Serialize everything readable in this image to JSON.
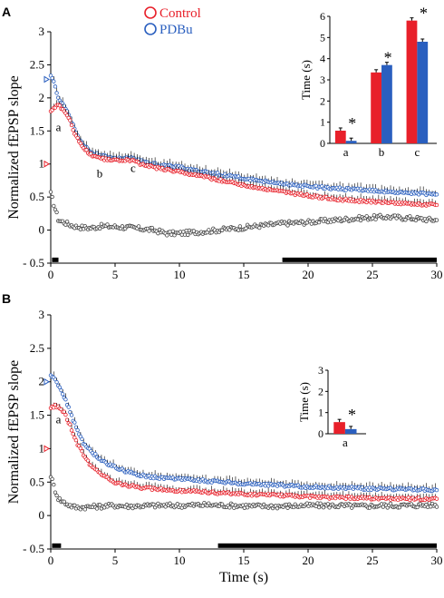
{
  "figure": {
    "colors": {
      "control": "#e8202a",
      "pdbu": "#2a5fbf",
      "difference": "#444444",
      "bar": "#000000"
    }
  },
  "chart_data": [
    {
      "panel": "A",
      "type": "scatter",
      "ylabel": "Normalized fEPSP slope",
      "xlabel": "",
      "xlim": [
        0,
        30
      ],
      "ylim": [
        -0.5,
        3
      ],
      "xticks": [
        "0",
        "5",
        "10",
        "15",
        "20",
        "25",
        "30"
      ],
      "yticks": [
        "- 0.5",
        "0",
        "0.5",
        "1",
        "1.5",
        "2",
        "2.5",
        "3"
      ],
      "legend": [
        "Control",
        "PDBu"
      ],
      "markers": [
        {
          "label": "a",
          "x": 0.6,
          "y": 1.5
        },
        {
          "label": "b",
          "x": 3.8,
          "y": 0.8
        },
        {
          "label": "c",
          "x": 6.4,
          "y": 0.88
        }
      ],
      "arrowheads": [
        {
          "series": "pdbu",
          "y": 2.28
        },
        {
          "series": "control",
          "y": 1.0
        }
      ],
      "series": [
        {
          "name": "PDBu",
          "color_key": "pdbu",
          "x": [
            0,
            0.3,
            0.6,
            1,
            1.5,
            2,
            2.5,
            3,
            3.5,
            4,
            5,
            6,
            7,
            8,
            10,
            12,
            15,
            18,
            20,
            22,
            25,
            28,
            30
          ],
          "values": [
            2.35,
            2.2,
            2.0,
            1.9,
            1.7,
            1.45,
            1.3,
            1.2,
            1.15,
            1.12,
            1.08,
            1.1,
            1.05,
            1.0,
            0.95,
            0.88,
            0.78,
            0.7,
            0.66,
            0.63,
            0.6,
            0.56,
            0.54
          ]
        },
        {
          "name": "Control",
          "color_key": "control",
          "x": [
            0,
            0.3,
            0.6,
            1,
            1.5,
            2,
            2.5,
            3,
            3.5,
            4,
            5,
            6,
            7,
            8,
            10,
            12,
            15,
            18,
            20,
            22,
            25,
            28,
            30
          ],
          "values": [
            1.8,
            1.87,
            1.88,
            1.82,
            1.65,
            1.4,
            1.25,
            1.15,
            1.1,
            1.08,
            1.05,
            1.07,
            1.0,
            0.95,
            0.88,
            0.8,
            0.68,
            0.58,
            0.52,
            0.47,
            0.43,
            0.4,
            0.38
          ]
        },
        {
          "name": "",
          "color_key": "difference",
          "x": [
            0,
            0.3,
            0.6,
            1,
            1.5,
            2,
            3,
            4,
            5,
            6,
            7,
            8,
            9,
            10,
            12,
            14,
            16,
            18,
            20,
            22,
            24,
            26,
            28,
            30
          ],
          "values": [
            0.55,
            0.35,
            0.15,
            0.12,
            0.08,
            0.05,
            0.03,
            0.06,
            0.05,
            0.04,
            0.02,
            0.0,
            -0.05,
            -0.05,
            -0.02,
            0.02,
            0.06,
            0.1,
            0.12,
            0.15,
            0.18,
            0.2,
            0.18,
            0.15
          ]
        }
      ],
      "timebars": [
        [
          0.1,
          0.6
        ],
        [
          18,
          30
        ]
      ],
      "inset": {
        "type": "bar",
        "ylabel": "Time (s)",
        "categories": [
          "a",
          "b",
          "c"
        ],
        "ylim": [
          0,
          6
        ],
        "yticks": [
          "0",
          "1",
          "2",
          "3",
          "4",
          "5",
          "6"
        ],
        "series": [
          {
            "name": "Control",
            "color_key": "control",
            "values": [
              0.6,
              3.35,
              5.8
            ]
          },
          {
            "name": "PDBu",
            "color_key": "pdbu",
            "values": [
              0.12,
              3.7,
              4.8
            ]
          }
        ],
        "significance": [
          "*",
          "*",
          "*"
        ]
      }
    },
    {
      "panel": "B",
      "type": "scatter",
      "ylabel": "Normalized fEPSP slope",
      "xlabel": "Time (s)",
      "xlim": [
        0,
        30
      ],
      "ylim": [
        -0.5,
        3
      ],
      "xticks": [
        "0",
        "5",
        "10",
        "15",
        "20",
        "25",
        "30"
      ],
      "yticks": [
        "- 0.5",
        "0",
        "0.5",
        "1",
        "1.5",
        "2",
        "2.5",
        "3"
      ],
      "markers": [
        {
          "label": "a",
          "x": 0.6,
          "y": 1.38
        }
      ],
      "arrowheads": [
        {
          "series": "pdbu",
          "y": 2.0
        },
        {
          "series": "control",
          "y": 1.0
        }
      ],
      "series": [
        {
          "name": "PDBu",
          "color_key": "pdbu",
          "x": [
            0,
            0.3,
            0.6,
            1,
            1.5,
            2,
            2.5,
            3,
            3.5,
            4,
            5,
            6,
            7,
            8,
            10,
            12,
            15,
            18,
            20,
            22,
            25,
            28,
            30
          ],
          "values": [
            2.1,
            2.05,
            1.95,
            1.8,
            1.55,
            1.3,
            1.1,
            0.98,
            0.9,
            0.82,
            0.72,
            0.65,
            0.6,
            0.57,
            0.55,
            0.52,
            0.48,
            0.45,
            0.43,
            0.42,
            0.4,
            0.39,
            0.38
          ]
        },
        {
          "name": "Control",
          "color_key": "control",
          "x": [
            0,
            0.3,
            0.6,
            1,
            1.5,
            2,
            2.5,
            3,
            3.5,
            4,
            5,
            6,
            7,
            8,
            10,
            12,
            15,
            18,
            20,
            22,
            25,
            28,
            30
          ],
          "values": [
            1.6,
            1.64,
            1.62,
            1.55,
            1.35,
            1.1,
            0.92,
            0.78,
            0.68,
            0.6,
            0.5,
            0.45,
            0.42,
            0.4,
            0.37,
            0.35,
            0.32,
            0.3,
            0.28,
            0.27,
            0.26,
            0.25,
            0.25
          ]
        },
        {
          "name": "",
          "color_key": "difference",
          "x": [
            0,
            0.3,
            0.6,
            1,
            1.5,
            2,
            3,
            4,
            5,
            6,
            8,
            10,
            12,
            14,
            16,
            18,
            20,
            22,
            24,
            26,
            28,
            30
          ],
          "values": [
            0.6,
            0.4,
            0.25,
            0.2,
            0.15,
            0.12,
            0.13,
            0.14,
            0.15,
            0.14,
            0.15,
            0.15,
            0.16,
            0.15,
            0.14,
            0.14,
            0.15,
            0.15,
            0.14,
            0.15,
            0.15,
            0.16
          ]
        }
      ],
      "timebars": [
        [
          0.1,
          0.8
        ],
        [
          13,
          30
        ]
      ],
      "inset": {
        "type": "bar",
        "ylabel": "Time (s)",
        "categories": [
          "a"
        ],
        "ylim": [
          0,
          3
        ],
        "yticks": [
          "0",
          "1",
          "2",
          "3"
        ],
        "series": [
          {
            "name": "Control",
            "color_key": "control",
            "values": [
              0.55
            ]
          },
          {
            "name": "PDBu",
            "color_key": "pdbu",
            "values": [
              0.22
            ]
          }
        ],
        "significance": [
          "*"
        ]
      }
    }
  ]
}
